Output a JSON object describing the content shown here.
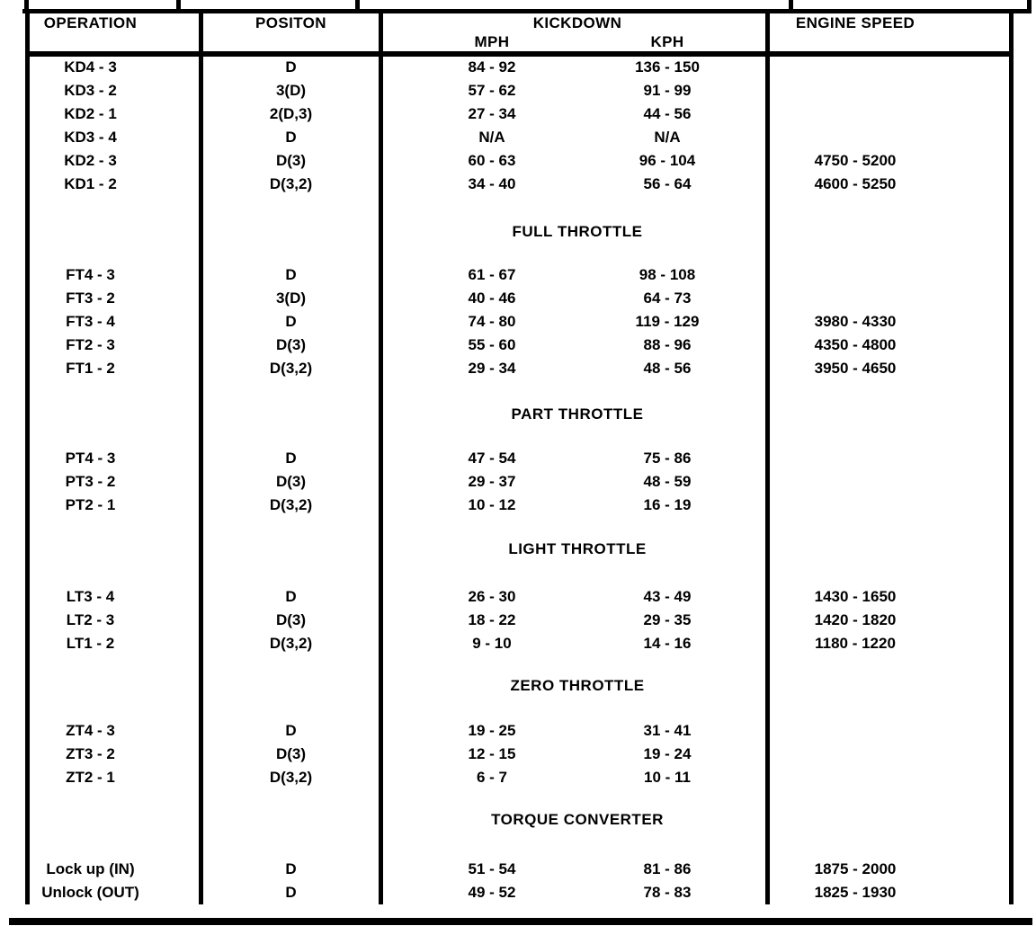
{
  "colors": {
    "ink": "#000000",
    "paper": "#ffffff"
  },
  "table": {
    "headers": {
      "operation": "OPERATION",
      "position": "POSITON",
      "kickdown": "KICKDOWN",
      "mph": "MPH",
      "kph": "KPH",
      "engine_speed": "ENGINE SPEED"
    },
    "sections": [
      {
        "title": "",
        "rows": [
          {
            "operation": "KD4 - 3",
            "position": "D",
            "mph": "84 - 92",
            "kph": "136 - 150",
            "engine": ""
          },
          {
            "operation": "KD3 - 2",
            "position": "3(D)",
            "mph": "57 - 62",
            "kph": "91 - 99",
            "engine": ""
          },
          {
            "operation": "KD2 - 1",
            "position": "2(D,3)",
            "mph": "27 - 34",
            "kph": "44 - 56",
            "engine": ""
          },
          {
            "operation": "KD3 - 4",
            "position": "D",
            "mph": "N/A",
            "kph": "N/A",
            "engine": ""
          },
          {
            "operation": "KD2 - 3",
            "position": "D(3)",
            "mph": "60 - 63",
            "kph": "96 - 104",
            "engine": "4750 - 5200"
          },
          {
            "operation": "KD1 - 2",
            "position": "D(3,2)",
            "mph": "34 - 40",
            "kph": "56 - 64",
            "engine": "4600 - 5250"
          }
        ]
      },
      {
        "title": "FULL THROTTLE",
        "rows": [
          {
            "operation": "FT4 - 3",
            "position": "D",
            "mph": "61 - 67",
            "kph": "98 - 108",
            "engine": ""
          },
          {
            "operation": "FT3 - 2",
            "position": "3(D)",
            "mph": "40 - 46",
            "kph": "64 - 73",
            "engine": ""
          },
          {
            "operation": "FT3 - 4",
            "position": "D",
            "mph": "74 - 80",
            "kph": "119 - 129",
            "engine": "3980 - 4330"
          },
          {
            "operation": "FT2 - 3",
            "position": "D(3)",
            "mph": "55 - 60",
            "kph": "88 - 96",
            "engine": "4350 - 4800"
          },
          {
            "operation": "FT1 - 2",
            "position": "D(3,2)",
            "mph": "29 - 34",
            "kph": "48 - 56",
            "engine": "3950 - 4650"
          }
        ]
      },
      {
        "title": "PART THROTTLE",
        "rows": [
          {
            "operation": "PT4 - 3",
            "position": "D",
            "mph": "47 - 54",
            "kph": "75 - 86",
            "engine": ""
          },
          {
            "operation": "PT3 - 2",
            "position": "D(3)",
            "mph": "29 - 37",
            "kph": "48 - 59",
            "engine": ""
          },
          {
            "operation": "PT2 - 1",
            "position": "D(3,2)",
            "mph": "10 - 12",
            "kph": "16 - 19",
            "engine": ""
          }
        ]
      },
      {
        "title": "LIGHT THROTTLE",
        "rows": [
          {
            "operation": "LT3 - 4",
            "position": "D",
            "mph": "26 - 30",
            "kph": "43 - 49",
            "engine": "1430 - 1650"
          },
          {
            "operation": "LT2 - 3",
            "position": "D(3)",
            "mph": "18 - 22",
            "kph": "29 - 35",
            "engine": "1420 - 1820"
          },
          {
            "operation": "LT1 - 2",
            "position": "D(3,2)",
            "mph": "9 - 10",
            "kph": "14 - 16",
            "engine": "1180 - 1220"
          }
        ]
      },
      {
        "title": "ZERO THROTTLE",
        "rows": [
          {
            "operation": "ZT4 - 3",
            "position": "D",
            "mph": "19 - 25",
            "kph": "31 - 41",
            "engine": ""
          },
          {
            "operation": "ZT3 - 2",
            "position": "D(3)",
            "mph": "12 - 15",
            "kph": "19 - 24",
            "engine": ""
          },
          {
            "operation": "ZT2 - 1",
            "position": "D(3,2)",
            "mph": "6 - 7",
            "kph": "10 - 11",
            "engine": ""
          }
        ]
      },
      {
        "title": "TORQUE CONVERTER",
        "rows": [
          {
            "operation": "Lock up (IN)",
            "position": "D",
            "mph": "51 - 54",
            "kph": "81 - 86",
            "engine": "1875 - 2000"
          },
          {
            "operation": "Unlock (OUT)",
            "position": "D",
            "mph": "49 - 52",
            "kph": "78 - 83",
            "engine": "1825 - 1930"
          }
        ]
      }
    ]
  }
}
